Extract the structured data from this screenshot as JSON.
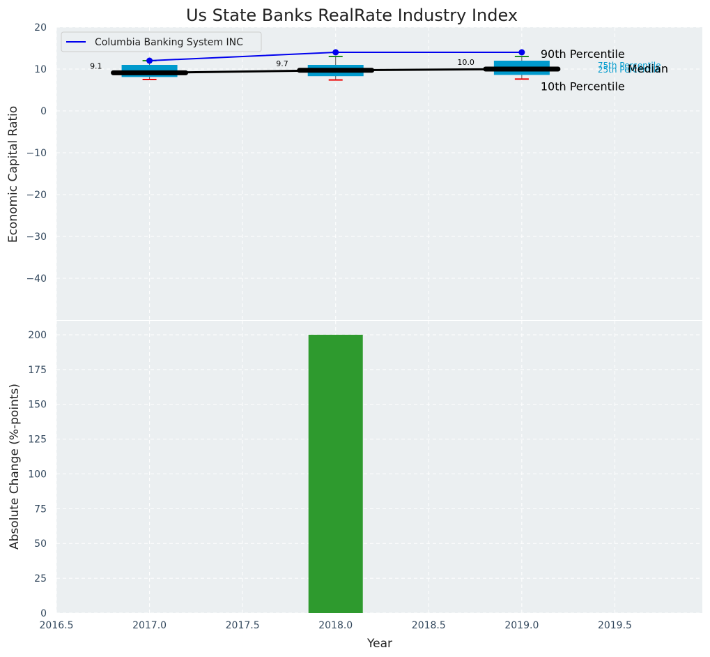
{
  "chart_data": [
    {
      "type": "box",
      "title": "Us State Banks RealRate Industry Index",
      "xlabel": "",
      "ylabel": "Economic Capital Ratio",
      "xlim": [
        2016.5,
        2019.97
      ],
      "ylim": [
        -50,
        20
      ],
      "yticks": [
        20,
        10,
        0,
        -10,
        -20,
        -30,
        -40
      ],
      "ytick_labels": [
        "20",
        "10",
        "0",
        "−10",
        "−20",
        "−30",
        "−40"
      ],
      "grid": true,
      "legend": {
        "position": "top-left",
        "entries": [
          "Columbia Banking System INC"
        ]
      },
      "boxes": [
        {
          "x": 2017,
          "p10": 7.5,
          "p25": 8.1,
          "median": 9.1,
          "p75": 11.0,
          "p90": 12.0,
          "median_label": "9.1"
        },
        {
          "x": 2018,
          "p10": 7.4,
          "p25": 8.3,
          "median": 9.7,
          "p75": 11.0,
          "p90": 13.0,
          "median_label": "9.7"
        },
        {
          "x": 2019,
          "p10": 7.6,
          "p25": 8.6,
          "median": 10.0,
          "p75": 12.0,
          "p90": 13.0,
          "median_label": "10.0"
        }
      ],
      "series": [
        {
          "name": "Columbia Banking System INC",
          "x": [
            2017,
            2018,
            2019
          ],
          "values": [
            12.0,
            14.0,
            14.0
          ],
          "color": "#0000EE"
        },
        {
          "name": "Median",
          "x": [
            2017,
            2018,
            2019
          ],
          "values": [
            9.1,
            9.7,
            10.0
          ],
          "color": "#000000"
        }
      ],
      "annotations": {
        "p90": "90th Percentile",
        "p75": "75th Percentile",
        "median": "Median",
        "p25": "25th Percentile",
        "p10": "10th Percentile"
      }
    },
    {
      "type": "bar",
      "xlabel": "Year",
      "ylabel": "Absolute Change (%-points)",
      "xlim": [
        2016.5,
        2019.97
      ],
      "ylim": [
        0,
        210
      ],
      "yticks": [
        0,
        25,
        50,
        75,
        100,
        125,
        150,
        175,
        200
      ],
      "ytick_labels": [
        "0",
        "25",
        "50",
        "75",
        "100",
        "125",
        "150",
        "175",
        "200"
      ],
      "xticks": [
        2016.5,
        2017.0,
        2017.5,
        2018.0,
        2018.5,
        2019.0,
        2019.5
      ],
      "xtick_labels": [
        "2016.5",
        "2017.0",
        "2017.5",
        "2018.0",
        "2018.5",
        "2019.0",
        "2019.5"
      ],
      "grid": true,
      "bars": [
        {
          "x": 2018,
          "value": 200
        }
      ]
    }
  ],
  "colors": {
    "plot_bg": "#EBEFF1",
    "box": "#009ACD",
    "p90_cap": "#228B22",
    "p10_cap": "#EE0000",
    "company": "#0000EE",
    "median": "#000000",
    "bar": "#2E9A2E"
  }
}
